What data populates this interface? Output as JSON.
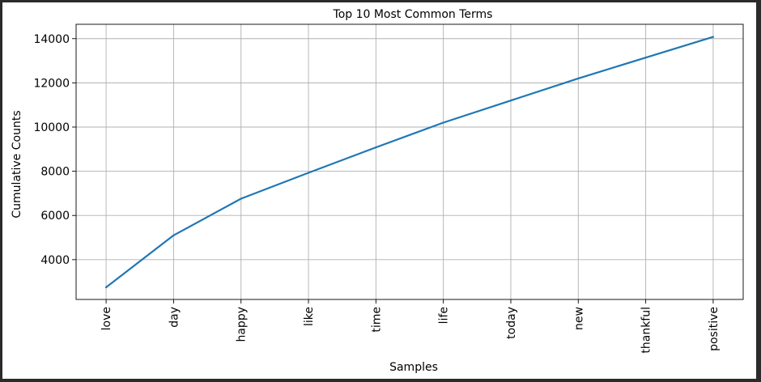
{
  "chart_data": {
    "type": "line",
    "title": "Top 10 Most Common Terms",
    "xlabel": "Samples",
    "ylabel": "Cumulative Counts",
    "categories": [
      "love",
      "day",
      "happy",
      "like",
      "time",
      "life",
      "today",
      "new",
      "thankful",
      "positive"
    ],
    "series": [
      {
        "values": [
          2750,
          5100,
          6760,
          7930,
          9080,
          10200,
          11200,
          12200,
          13140,
          14080
        ],
        "color": "#1f77b4"
      }
    ],
    "ylim": [
      2200,
      14650
    ],
    "yticks": [
      4000,
      6000,
      8000,
      10000,
      12000,
      14000
    ],
    "ytick_labels": [
      "4000",
      "6000",
      "8000",
      "10000",
      "12000",
      "14000"
    ],
    "grid": true,
    "x_tick_rotation": "vertical"
  }
}
